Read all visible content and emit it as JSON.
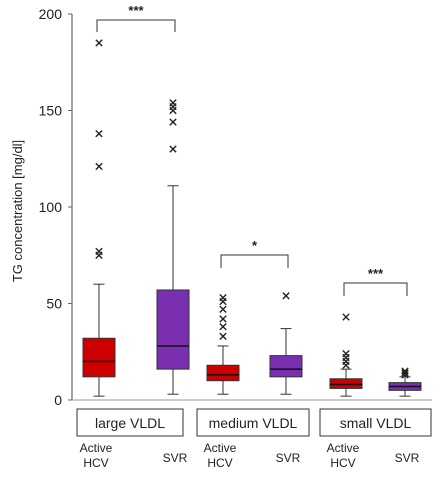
{
  "chart_data": {
    "type": "box",
    "ylabel": "TG  concentration  [mg/dl]",
    "ylim": [
      0,
      200
    ],
    "yticks": [
      "0",
      "50",
      "100",
      "150",
      "200"
    ],
    "series": [
      {
        "name": "Active HCV",
        "color": "#cc0000"
      },
      {
        "name": "SVR",
        "color": "#7a2fb0"
      }
    ],
    "groups": [
      {
        "label": "large  VLDL",
        "significance": "***",
        "boxes": [
          {
            "label_line1": "Active",
            "label_line2": "HCV",
            "min": 2,
            "q1": 12,
            "median": 20,
            "q3": 32,
            "max": 60,
            "outliers": [
              75,
              77,
              121,
              138,
              185
            ]
          },
          {
            "label_line1": "SVR",
            "label_line2": "",
            "min": 3,
            "q1": 16,
            "median": 28,
            "q3": 57,
            "max": 111,
            "outliers": [
              130,
              144,
              150,
              152,
              154
            ]
          }
        ]
      },
      {
        "label": "medium  VLDL",
        "significance": "*",
        "boxes": [
          {
            "label_line1": "Active",
            "label_line2": "HCV",
            "min": 3,
            "q1": 10,
            "median": 13,
            "q3": 18,
            "max": 28,
            "outliers": [
              33,
              38,
              42,
              47,
              51,
              53
            ]
          },
          {
            "label_line1": "SVR",
            "label_line2": "",
            "min": 3,
            "q1": 12,
            "median": 16,
            "q3": 23,
            "max": 37,
            "outliers": [
              54
            ]
          }
        ]
      },
      {
        "label": "small  VLDL",
        "significance": "***",
        "boxes": [
          {
            "label_line1": "Active",
            "label_line2": "HCV",
            "min": 2,
            "q1": 6,
            "median": 8,
            "q3": 11,
            "max": 16,
            "outliers": [
              18,
              20,
              22,
              24,
              43
            ]
          },
          {
            "label_line1": "SVR",
            "label_line2": "",
            "min": 2,
            "q1": 5,
            "median": 7,
            "q3": 9,
            "max": 12,
            "outliers": [
              13,
              14,
              15
            ]
          }
        ]
      }
    ]
  }
}
